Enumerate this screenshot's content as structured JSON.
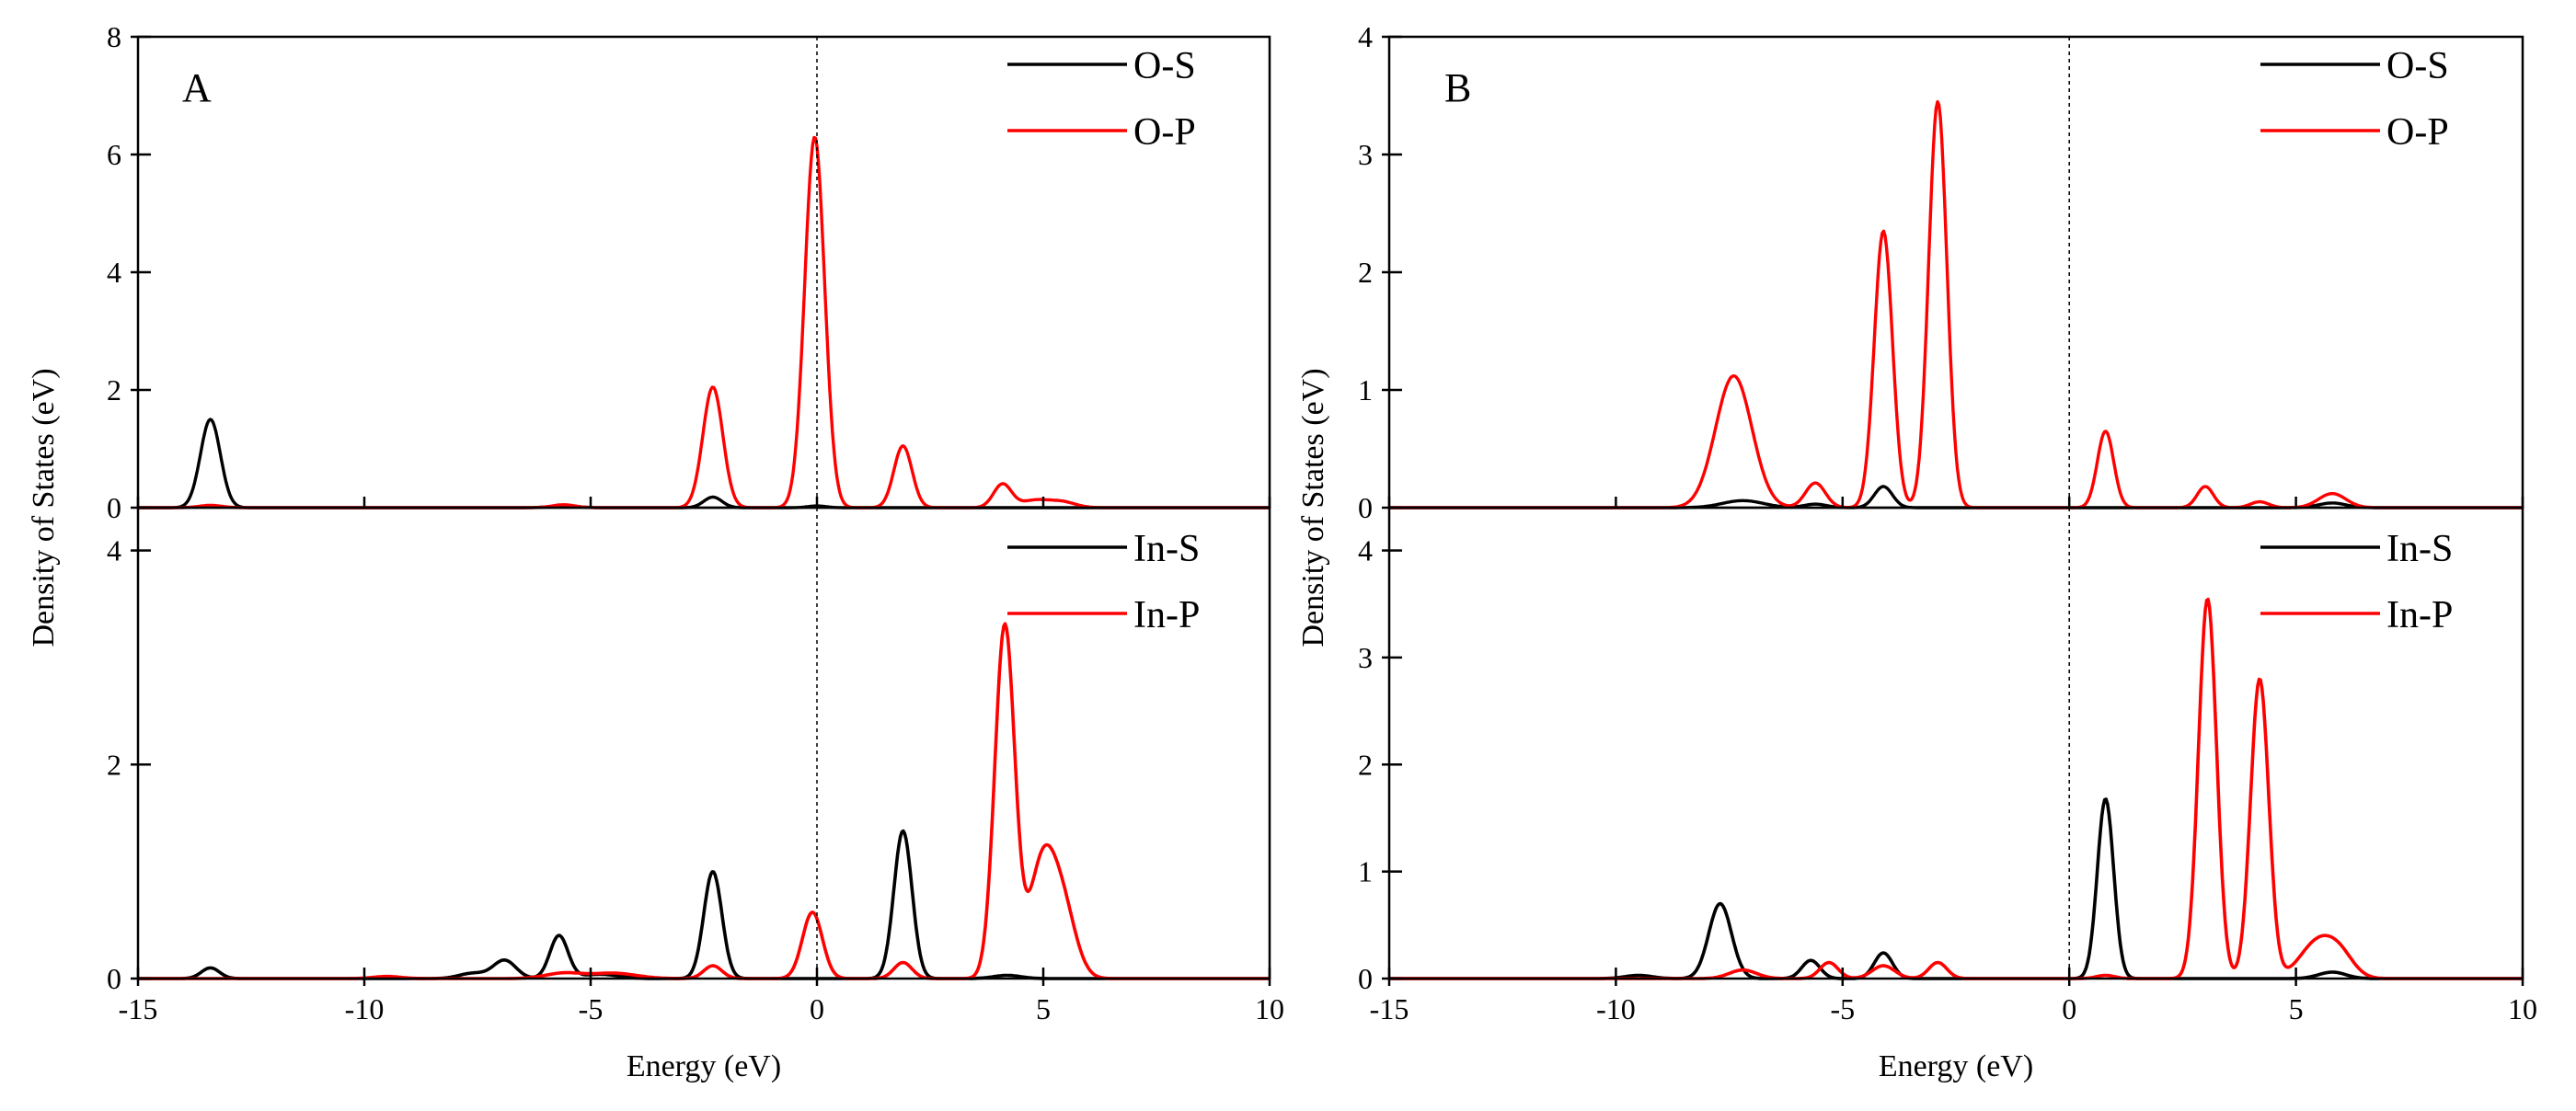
{
  "figure": {
    "xlabel": "Energy (eV)",
    "ylabel": "Density of States (eV)"
  },
  "chart_data": [
    {
      "type": "line",
      "panel": "A",
      "subplot": "top",
      "xlabel": "Energy (eV)",
      "ylabel": "Density of States (eV)",
      "xlim": [
        -15,
        10
      ],
      "ylim": [
        0,
        8
      ],
      "xticks": [
        -15,
        -10,
        -5,
        0,
        5,
        10
      ],
      "yticks": [
        0,
        2,
        4,
        6,
        8
      ],
      "fermi_line_x": 0,
      "legend_position": "top-right",
      "series": [
        {
          "name": "O-S",
          "color": "#000000",
          "peaks": [
            [
              -13.4,
              1.5,
              0.22
            ],
            [
              -2.3,
              0.18,
              0.2
            ],
            [
              -5.6,
              0.03,
              0.3
            ],
            [
              0.0,
              0.03,
              0.2
            ]
          ]
        },
        {
          "name": "O-P",
          "color": "#ff0000",
          "peaks": [
            [
              -13.4,
              0.04,
              0.25
            ],
            [
              -5.6,
              0.05,
              0.25
            ],
            [
              -2.3,
              2.05,
              0.22
            ],
            [
              -0.05,
              6.3,
              0.22
            ],
            [
              1.9,
              1.05,
              0.2
            ],
            [
              4.1,
              0.4,
              0.2
            ],
            [
              4.8,
              0.12,
              0.3
            ],
            [
              5.4,
              0.1,
              0.3
            ]
          ]
        }
      ]
    },
    {
      "type": "line",
      "panel": "A",
      "subplot": "bottom",
      "xlabel": "Energy (eV)",
      "ylabel": "Density of States (eV)",
      "xlim": [
        -15,
        10
      ],
      "ylim": [
        0,
        4.4
      ],
      "xticks": [
        -15,
        -10,
        -5,
        0,
        5,
        10
      ],
      "yticks": [
        0,
        2,
        4
      ],
      "fermi_line_x": 0,
      "legend_position": "top-right",
      "series": [
        {
          "name": "In-S",
          "color": "#000000",
          "peaks": [
            [
              -13.4,
              0.1,
              0.2
            ],
            [
              -7.6,
              0.05,
              0.3
            ],
            [
              -6.9,
              0.17,
              0.25
            ],
            [
              -5.7,
              0.4,
              0.2
            ],
            [
              -4.8,
              0.04,
              0.4
            ],
            [
              -2.3,
              1.0,
              0.2
            ],
            [
              1.9,
              1.38,
              0.2
            ],
            [
              4.2,
              0.03,
              0.3
            ]
          ]
        },
        {
          "name": "In-P",
          "color": "#ff0000",
          "peaks": [
            [
              -9.5,
              0.02,
              0.3
            ],
            [
              -5.6,
              0.05,
              0.4
            ],
            [
              -4.5,
              0.05,
              0.5
            ],
            [
              -2.3,
              0.12,
              0.2
            ],
            [
              -0.1,
              0.62,
              0.22
            ],
            [
              1.9,
              0.15,
              0.2
            ],
            [
              4.15,
              3.3,
              0.22
            ],
            [
              4.95,
              0.95,
              0.28
            ],
            [
              5.4,
              0.7,
              0.3
            ]
          ]
        }
      ]
    },
    {
      "type": "line",
      "panel": "B",
      "subplot": "top",
      "xlabel": "Energy (eV)",
      "ylabel": "Density of States (eV)",
      "xlim": [
        -15,
        10
      ],
      "ylim": [
        0,
        4
      ],
      "xticks": [
        -15,
        -10,
        -5,
        0,
        5,
        10
      ],
      "yticks": [
        0,
        1,
        2,
        3,
        4
      ],
      "fermi_line_x": 0,
      "legend_position": "top-right",
      "series": [
        {
          "name": "O-S",
          "color": "#000000",
          "peaks": [
            [
              -7.2,
              0.06,
              0.45
            ],
            [
              -5.6,
              0.03,
              0.25
            ],
            [
              -4.1,
              0.18,
              0.2
            ],
            [
              5.8,
              0.04,
              0.3
            ]
          ]
        },
        {
          "name": "O-P",
          "color": "#ff0000",
          "peaks": [
            [
              -7.4,
              1.12,
              0.4
            ],
            [
              -5.6,
              0.21,
              0.22
            ],
            [
              -4.1,
              2.35,
              0.2
            ],
            [
              -2.9,
              3.45,
              0.2
            ],
            [
              0.8,
              0.65,
              0.18
            ],
            [
              3.0,
              0.18,
              0.18
            ],
            [
              4.2,
              0.05,
              0.2
            ],
            [
              5.8,
              0.12,
              0.3
            ]
          ]
        }
      ]
    },
    {
      "type": "line",
      "panel": "B",
      "subplot": "bottom",
      "xlabel": "Energy (eV)",
      "ylabel": "Density of States (eV)",
      "xlim": [
        -15,
        10
      ],
      "ylim": [
        0,
        4.4
      ],
      "xticks": [
        -15,
        -10,
        -5,
        0,
        5,
        10
      ],
      "yticks": [
        0,
        1,
        2,
        3,
        4
      ],
      "fermi_line_x": 0,
      "legend_position": "top-right",
      "series": [
        {
          "name": "In-S",
          "color": "#000000",
          "peaks": [
            [
              -9.5,
              0.03,
              0.3
            ],
            [
              -7.7,
              0.7,
              0.25
            ],
            [
              -5.7,
              0.17,
              0.2
            ],
            [
              -4.1,
              0.24,
              0.2
            ],
            [
              0.8,
              1.68,
              0.18
            ],
            [
              5.8,
              0.06,
              0.3
            ]
          ]
        },
        {
          "name": "In-P",
          "color": "#ff0000",
          "peaks": [
            [
              -7.2,
              0.08,
              0.3
            ],
            [
              -5.3,
              0.15,
              0.2
            ],
            [
              -4.1,
              0.12,
              0.25
            ],
            [
              -2.9,
              0.15,
              0.2
            ],
            [
              0.8,
              0.03,
              0.2
            ],
            [
              3.05,
              3.55,
              0.2
            ],
            [
              4.2,
              2.8,
              0.2
            ],
            [
              5.5,
              0.35,
              0.4
            ],
            [
              6.0,
              0.15,
              0.3
            ]
          ]
        }
      ]
    }
  ]
}
